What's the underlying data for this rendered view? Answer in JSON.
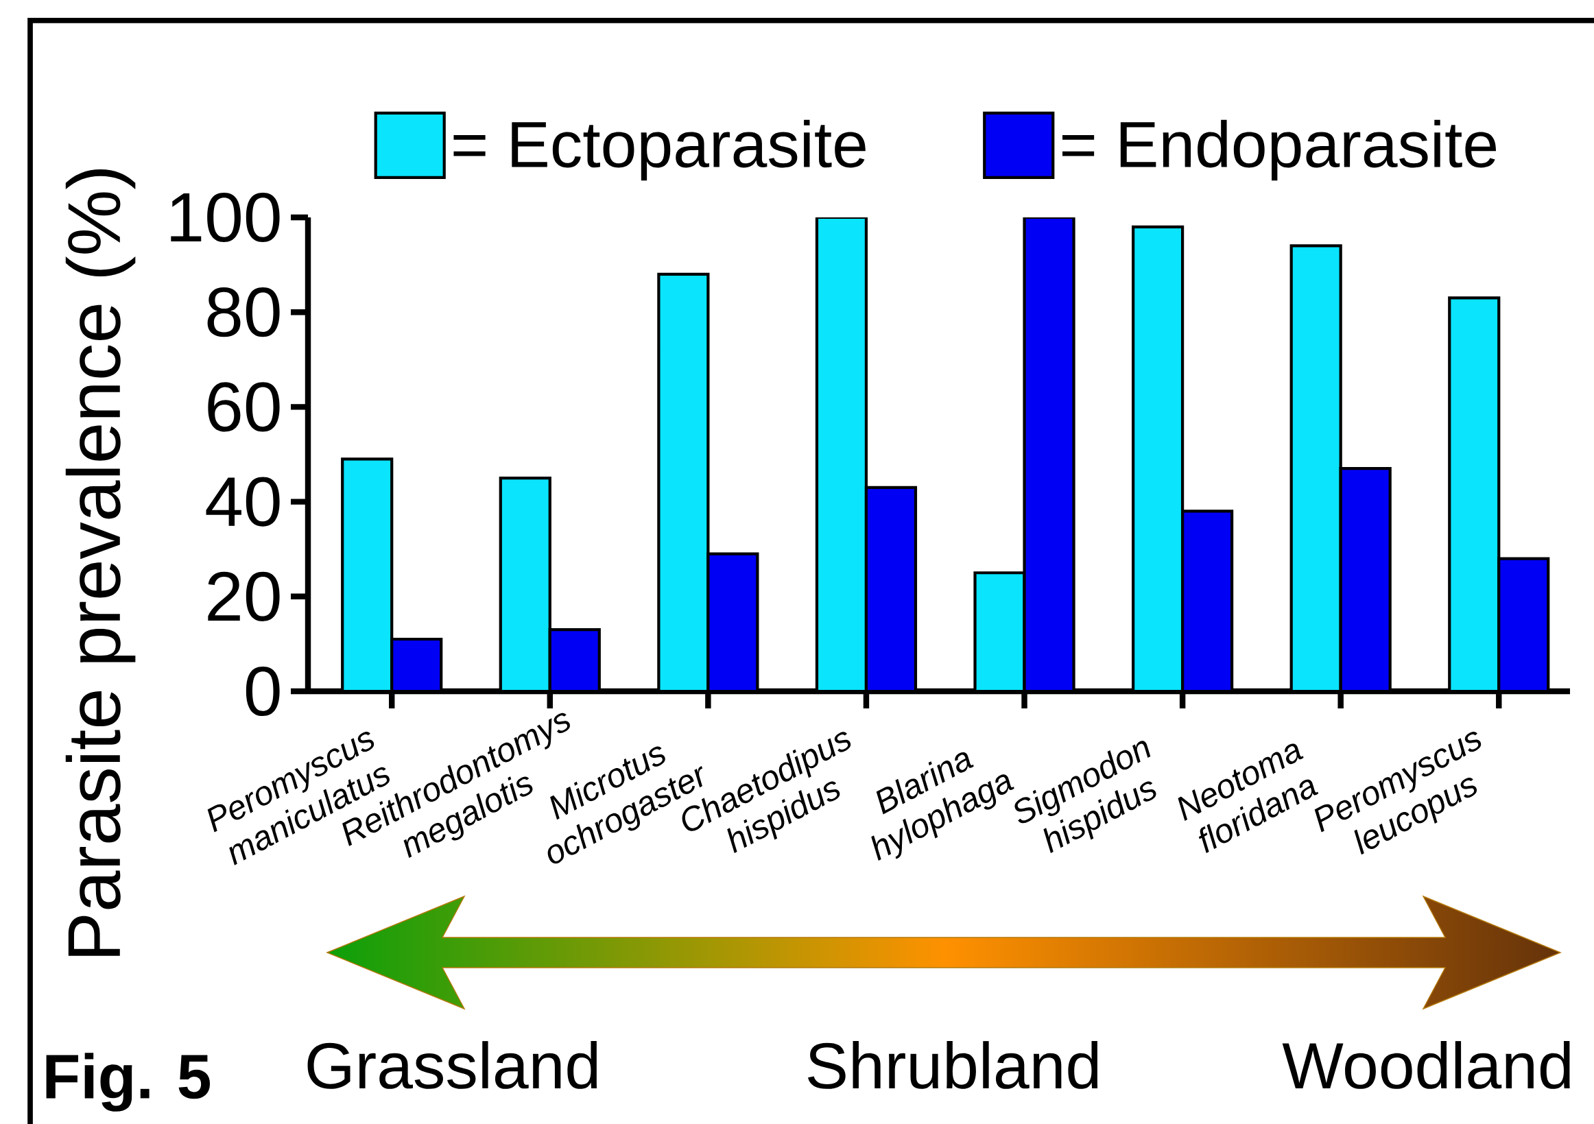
{
  "chart_data": {
    "type": "bar",
    "ylabel": "Parasite prevalence (%)",
    "categories": [
      "Peromyscus maniculatus",
      "Reithrodontomys megalotis",
      "Microtus ochrogaster",
      "Chaetodipus hispidus",
      "Blarina hylophaga",
      "Sigmodon hispidus",
      "Neotoma floridana",
      "Peromyscus leucopus"
    ],
    "series": [
      {
        "name": "= Ectoparasite",
        "color": "#0ae4fc",
        "values": [
          49,
          45,
          88,
          100,
          25,
          98,
          94,
          83
        ]
      },
      {
        "name": "= Endoparasite",
        "color": "#0000f5",
        "values": [
          11,
          13,
          29,
          43,
          100,
          38,
          47,
          28
        ]
      }
    ],
    "ylim": [
      0,
      100
    ],
    "yticks": [
      0,
      20,
      40,
      60,
      80,
      100
    ],
    "legend": "top",
    "annotations": [
      "Grassland",
      "Shrubland",
      "Woodland",
      "Fig. 5"
    ]
  }
}
